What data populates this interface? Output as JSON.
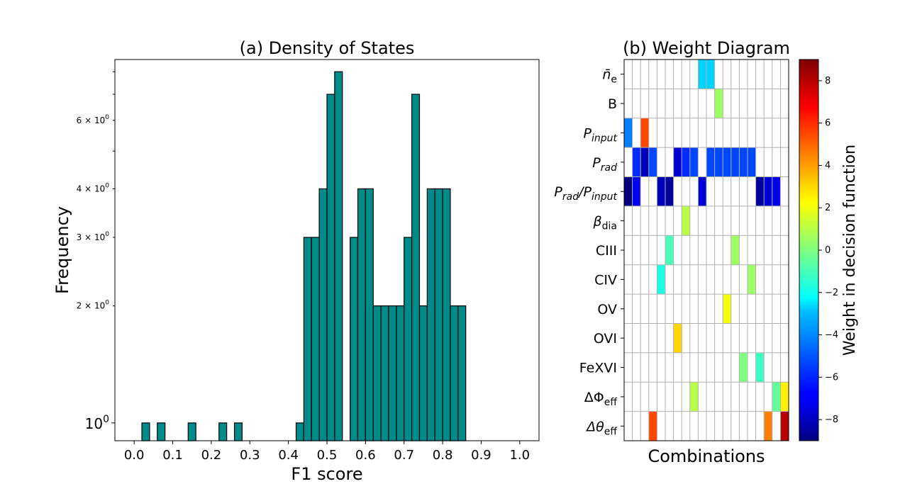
{
  "chart_data": [
    {
      "type": "bar",
      "title": "(a) Density of States",
      "xlabel": "F1 score",
      "ylabel": "Frequency",
      "yscale": "log",
      "xlim": [
        -0.05,
        1.05
      ],
      "ylim": [
        0.9,
        8.6
      ],
      "bin_width": 0.02,
      "x_ticks": [
        "0.0",
        "0.1",
        "0.2",
        "0.3",
        "0.4",
        "0.5",
        "0.6",
        "0.7",
        "0.8",
        "0.9",
        "1.0"
      ],
      "y_tick_labels": [
        {
          "value": 1,
          "label": "10",
          "exp": "0"
        },
        {
          "value": 2,
          "label": "2 × 10",
          "exp": "0"
        },
        {
          "value": 3,
          "label": "3 × 10",
          "exp": "0"
        },
        {
          "value": 4,
          "label": "4 × 10",
          "exp": "0"
        },
        {
          "value": 6,
          "label": "6 × 10",
          "exp": "0"
        }
      ],
      "bins": [
        {
          "x": 0.03,
          "count": 1
        },
        {
          "x": 0.07,
          "count": 1
        },
        {
          "x": 0.15,
          "count": 1
        },
        {
          "x": 0.23,
          "count": 1
        },
        {
          "x": 0.27,
          "count": 1
        },
        {
          "x": 0.43,
          "count": 1
        },
        {
          "x": 0.45,
          "count": 3
        },
        {
          "x": 0.47,
          "count": 3
        },
        {
          "x": 0.49,
          "count": 4
        },
        {
          "x": 0.51,
          "count": 7
        },
        {
          "x": 0.53,
          "count": 8
        },
        {
          "x": 0.57,
          "count": 3
        },
        {
          "x": 0.59,
          "count": 4
        },
        {
          "x": 0.61,
          "count": 4
        },
        {
          "x": 0.63,
          "count": 2
        },
        {
          "x": 0.65,
          "count": 2
        },
        {
          "x": 0.67,
          "count": 2
        },
        {
          "x": 0.69,
          "count": 2
        },
        {
          "x": 0.71,
          "count": 3
        },
        {
          "x": 0.73,
          "count": 7
        },
        {
          "x": 0.75,
          "count": 2
        },
        {
          "x": 0.77,
          "count": 4
        },
        {
          "x": 0.79,
          "count": 4
        },
        {
          "x": 0.81,
          "count": 4
        },
        {
          "x": 0.83,
          "count": 2
        },
        {
          "x": 0.85,
          "count": 2
        }
      ],
      "bar_color": "#008b8b",
      "edge_color": "#000000"
    },
    {
      "type": "heatmap",
      "title": "(b) Weight Diagram",
      "xlabel": "Combinations",
      "n_columns": 20,
      "rows": [
        {
          "label": "n̄",
          "sub": "e",
          "italic": true,
          "upright_sub": true
        },
        {
          "label": "B",
          "sub": "",
          "italic": false
        },
        {
          "label": "P",
          "sub": "input",
          "italic": true
        },
        {
          "label": "P",
          "sub": "rad",
          "italic": true
        },
        {
          "label": "P",
          "sub": "rad",
          "slash": "/P",
          "sub2": "input",
          "italic": true
        },
        {
          "label": "β",
          "sub": "dia",
          "italic": true,
          "upright_sub": true
        },
        {
          "label": "CIII",
          "sub": "",
          "italic": false
        },
        {
          "label": "CIV",
          "sub": "",
          "italic": false
        },
        {
          "label": "OV",
          "sub": "",
          "italic": false
        },
        {
          "label": "OVI",
          "sub": "",
          "italic": false
        },
        {
          "label": "FeXVI",
          "sub": "",
          "italic": false
        },
        {
          "label": "ΔΦ",
          "sub": "eff",
          "italic": false,
          "upright_sub": true
        },
        {
          "label": "Δθ",
          "sub": "eff",
          "italic": true,
          "upright_sub": true
        }
      ],
      "cells": [
        {
          "r": 0,
          "c": 9,
          "v": -3
        },
        {
          "r": 0,
          "c": 10,
          "v": -3
        },
        {
          "r": 1,
          "c": 11,
          "v": 0.5
        },
        {
          "r": 2,
          "c": 0,
          "v": -4.5
        },
        {
          "r": 2,
          "c": 2,
          "v": 5.5
        },
        {
          "r": 3,
          "c": 1,
          "v": -6
        },
        {
          "r": 3,
          "c": 2,
          "v": -8
        },
        {
          "r": 3,
          "c": 3,
          "v": -5.5
        },
        {
          "r": 3,
          "c": 6,
          "v": -7.5
        },
        {
          "r": 3,
          "c": 7,
          "v": -6
        },
        {
          "r": 3,
          "c": 8,
          "v": -5.5
        },
        {
          "r": 3,
          "c": 10,
          "v": -5.5
        },
        {
          "r": 3,
          "c": 11,
          "v": -5.5
        },
        {
          "r": 3,
          "c": 12,
          "v": -5.5
        },
        {
          "r": 3,
          "c": 13,
          "v": -5.5
        },
        {
          "r": 3,
          "c": 14,
          "v": -5.5
        },
        {
          "r": 3,
          "c": 15,
          "v": -5.5
        },
        {
          "r": 4,
          "c": 0,
          "v": -9
        },
        {
          "r": 4,
          "c": 1,
          "v": -7
        },
        {
          "r": 4,
          "c": 4,
          "v": -8
        },
        {
          "r": 4,
          "c": 5,
          "v": -8.5
        },
        {
          "r": 4,
          "c": 9,
          "v": -7.5
        },
        {
          "r": 4,
          "c": 16,
          "v": -8.5
        },
        {
          "r": 4,
          "c": 17,
          "v": -7.5
        },
        {
          "r": 4,
          "c": 18,
          "v": -7
        },
        {
          "r": 5,
          "c": 7,
          "v": 1
        },
        {
          "r": 6,
          "c": 5,
          "v": -1
        },
        {
          "r": 6,
          "c": 13,
          "v": 0.5
        },
        {
          "r": 7,
          "c": 4,
          "v": -1.8
        },
        {
          "r": 7,
          "c": 15,
          "v": 0.5
        },
        {
          "r": 8,
          "c": 12,
          "v": 2
        },
        {
          "r": 9,
          "c": 6,
          "v": 3
        },
        {
          "r": 10,
          "c": 14,
          "v": 0
        },
        {
          "r": 10,
          "c": 16,
          "v": -1.2
        },
        {
          "r": 11,
          "c": 8,
          "v": 1
        },
        {
          "r": 11,
          "c": 18,
          "v": -0.5
        },
        {
          "r": 11,
          "c": 19,
          "v": 2.5
        },
        {
          "r": 12,
          "c": 3,
          "v": 5.5
        },
        {
          "r": 12,
          "c": 17,
          "v": 4.5
        },
        {
          "r": 12,
          "c": 19,
          "v": 8
        }
      ],
      "colorbar": {
        "label": "Weight in decision function",
        "vmin": -9,
        "vmax": 9,
        "ticks": [
          -8,
          -6,
          -4,
          -2,
          0,
          2,
          4,
          6,
          8
        ],
        "tick_labels": [
          "−8",
          "−6",
          "−4",
          "−2",
          "0",
          "2",
          "4",
          "6",
          "8"
        ],
        "colormap": "jet"
      },
      "grid_color": "#b0b0b0"
    }
  ]
}
